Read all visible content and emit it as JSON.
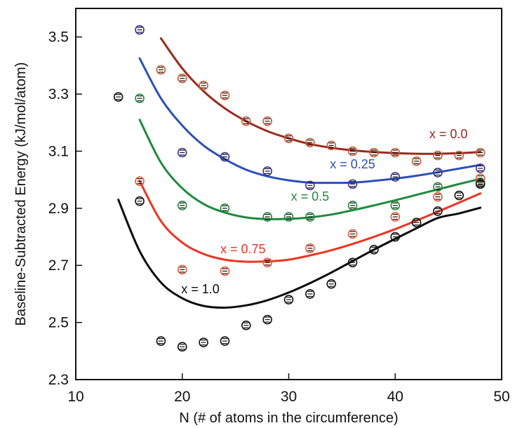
{
  "chart_data": {
    "type": "scatter",
    "xlabel": "N (# of atoms in the circumference)",
    "ylabel": "Baseline-Subtracted Energy (kJ/mol/atom)",
    "xlim": [
      10,
      50
    ],
    "ylim": [
      2.3,
      3.6
    ],
    "x_ticks": [
      "10",
      "20",
      "30",
      "40",
      "50"
    ],
    "y_ticks": [
      "2.3",
      "2.5",
      "2.7",
      "2.9",
      "3.1",
      "3.3",
      "3.5"
    ],
    "x_tick_values": [
      10,
      20,
      30,
      40,
      50
    ],
    "y_tick_values": [
      2.3,
      2.5,
      2.7,
      2.9,
      3.1,
      3.3,
      3.5
    ],
    "grid": false,
    "legend": "none",
    "series": [
      {
        "name": "x = 0.0",
        "color": "#9b2a1c",
        "marker_color": "#cc5a32",
        "label_pos": [
          45.0,
          3.145
        ],
        "points": [
          [
            18,
            3.385
          ],
          [
            20,
            3.355
          ],
          [
            22,
            3.33
          ],
          [
            24,
            3.295
          ],
          [
            26,
            3.205
          ],
          [
            28,
            3.205
          ],
          [
            30,
            3.145
          ],
          [
            32,
            3.13
          ],
          [
            34,
            3.12
          ],
          [
            36,
            3.1
          ],
          [
            38,
            3.095
          ],
          [
            40,
            3.095
          ],
          [
            42,
            3.065
          ],
          [
            44,
            3.085
          ],
          [
            46,
            3.085
          ],
          [
            48,
            3.095
          ]
        ],
        "fit": [
          [
            18,
            3.495
          ],
          [
            20,
            3.39
          ],
          [
            22,
            3.31
          ],
          [
            24,
            3.25
          ],
          [
            26,
            3.205
          ],
          [
            28,
            3.17
          ],
          [
            30,
            3.145
          ],
          [
            32,
            3.125
          ],
          [
            34,
            3.112
          ],
          [
            36,
            3.103
          ],
          [
            38,
            3.097
          ],
          [
            40,
            3.093
          ],
          [
            42,
            3.091
          ],
          [
            44,
            3.091
          ],
          [
            46,
            3.093
          ],
          [
            48,
            3.097
          ]
        ]
      },
      {
        "name": "x = 0.25",
        "color": "#2b4fb8",
        "marker_color": "#33339a",
        "label_pos": [
          36.0,
          3.04
        ],
        "points": [
          [
            16,
            3.525
          ],
          [
            20,
            3.095
          ],
          [
            24,
            3.08
          ],
          [
            28,
            3.03
          ],
          [
            32,
            2.98
          ],
          [
            36,
            2.985
          ],
          [
            40,
            3.01
          ],
          [
            44,
            3.025
          ],
          [
            48,
            3.04
          ]
        ],
        "fit": [
          [
            16,
            3.425
          ],
          [
            18,
            3.285
          ],
          [
            20,
            3.19
          ],
          [
            22,
            3.12
          ],
          [
            24,
            3.072
          ],
          [
            26,
            3.035
          ],
          [
            28,
            3.012
          ],
          [
            30,
            2.998
          ],
          [
            32,
            2.99
          ],
          [
            34,
            2.989
          ],
          [
            36,
            2.99
          ],
          [
            38,
            2.996
          ],
          [
            40,
            3.004
          ],
          [
            42,
            3.014
          ],
          [
            44,
            3.026
          ],
          [
            46,
            3.039
          ],
          [
            48,
            3.052
          ]
        ]
      },
      {
        "name": "x = 0.5",
        "color": "#1e8a3c",
        "marker_color": "#1e8a3c",
        "label_pos": [
          32.0,
          2.927
        ],
        "points": [
          [
            16,
            3.285
          ],
          [
            20,
            2.91
          ],
          [
            24,
            2.9
          ],
          [
            28,
            2.87
          ],
          [
            30,
            2.87
          ],
          [
            32,
            2.87
          ],
          [
            36,
            2.91
          ],
          [
            40,
            2.91
          ],
          [
            44,
            2.975
          ],
          [
            48,
            2.99
          ]
        ],
        "fit": [
          [
            16,
            3.21
          ],
          [
            18,
            3.06
          ],
          [
            20,
            2.97
          ],
          [
            22,
            2.915
          ],
          [
            24,
            2.885
          ],
          [
            26,
            2.868
          ],
          [
            28,
            2.862
          ],
          [
            30,
            2.863
          ],
          [
            32,
            2.868
          ],
          [
            34,
            2.878
          ],
          [
            36,
            2.893
          ],
          [
            38,
            2.91
          ],
          [
            40,
            2.928
          ],
          [
            42,
            2.947
          ],
          [
            44,
            2.966
          ],
          [
            46,
            2.985
          ],
          [
            48,
            3.003
          ]
        ]
      },
      {
        "name": "x = 0.75",
        "color": "#ee3322",
        "marker_color": "#ee5533",
        "label_pos": [
          25.7,
          2.742
        ],
        "points": [
          [
            16,
            2.995
          ],
          [
            20,
            2.685
          ],
          [
            24,
            2.68
          ],
          [
            28,
            2.71
          ],
          [
            32,
            2.76
          ],
          [
            36,
            2.81
          ],
          [
            40,
            2.87
          ],
          [
            44,
            2.94
          ],
          [
            48,
            3.005
          ]
        ],
        "fit": [
          [
            16,
            2.995
          ],
          [
            18,
            2.855
          ],
          [
            20,
            2.78
          ],
          [
            22,
            2.74
          ],
          [
            24,
            2.72
          ],
          [
            26,
            2.713
          ],
          [
            28,
            2.714
          ],
          [
            30,
            2.72
          ],
          [
            32,
            2.735
          ],
          [
            34,
            2.753
          ],
          [
            36,
            2.775
          ],
          [
            38,
            2.8
          ],
          [
            40,
            2.827
          ],
          [
            42,
            2.857
          ],
          [
            44,
            2.888
          ],
          [
            46,
            2.92
          ],
          [
            48,
            2.952
          ]
        ]
      },
      {
        "name": "x = 1.0",
        "color": "#0a0a0a",
        "marker_color": "#111111",
        "label_pos": [
          21.7,
          2.602
        ],
        "points": [
          [
            14,
            3.29
          ],
          [
            16,
            2.925
          ],
          [
            18,
            2.435
          ],
          [
            20,
            2.415
          ],
          [
            22,
            2.43
          ],
          [
            24,
            2.435
          ],
          [
            26,
            2.49
          ],
          [
            28,
            2.51
          ],
          [
            30,
            2.58
          ],
          [
            32,
            2.6
          ],
          [
            34,
            2.635
          ],
          [
            36,
            2.71
          ],
          [
            38,
            2.755
          ],
          [
            40,
            2.8
          ],
          [
            42,
            2.85
          ],
          [
            44,
            2.89
          ],
          [
            46,
            2.945
          ],
          [
            48,
            2.985
          ]
        ],
        "fit": [
          [
            14,
            2.93
          ],
          [
            16,
            2.75
          ],
          [
            18,
            2.64
          ],
          [
            20,
            2.585
          ],
          [
            22,
            2.558
          ],
          [
            24,
            2.552
          ],
          [
            26,
            2.56
          ],
          [
            28,
            2.578
          ],
          [
            30,
            2.605
          ],
          [
            32,
            2.638
          ],
          [
            34,
            2.675
          ],
          [
            36,
            2.715
          ],
          [
            38,
            2.755
          ],
          [
            40,
            2.793
          ],
          [
            42,
            2.83
          ],
          [
            44,
            2.866
          ],
          [
            46,
            2.882
          ],
          [
            48,
            2.902
          ]
        ]
      }
    ]
  }
}
